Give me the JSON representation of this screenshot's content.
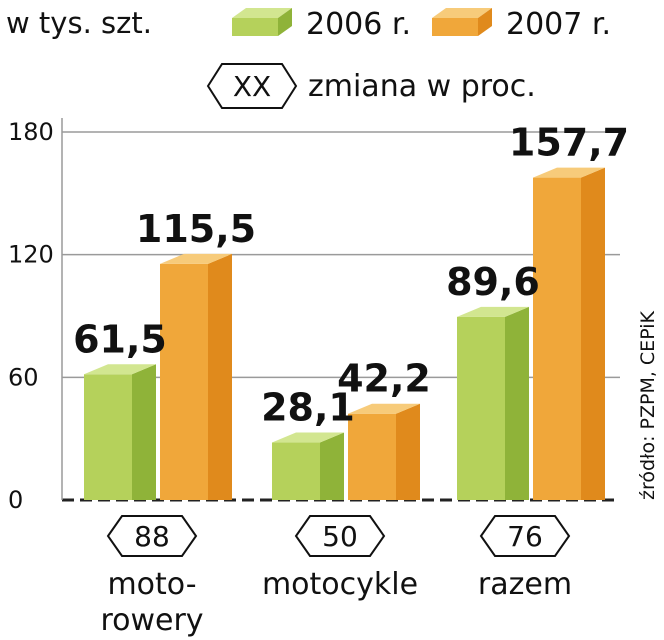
{
  "chart_data": {
    "type": "bar",
    "unit_label": "w tys. szt.",
    "legend_placement": "top",
    "series": [
      {
        "name": "2006 r.",
        "values": [
          61.5,
          28.1,
          89.6
        ],
        "labels": [
          "61,5",
          "28,1",
          "89,6"
        ],
        "color": "#b5d15b"
      },
      {
        "name": "2007 r.",
        "values": [
          115.5,
          42.2,
          157.7
        ],
        "labels": [
          "115,5",
          "42,2",
          "157,7"
        ],
        "color": "#f0a73a"
      }
    ],
    "categories": [
      {
        "lines": [
          "moto-",
          "rowery"
        ],
        "change": "88"
      },
      {
        "lines": [
          "motocykle"
        ],
        "change": "50"
      },
      {
        "lines": [
          "razem"
        ],
        "change": "76"
      }
    ],
    "change_legend": {
      "symbol": "XX",
      "label": "zmiana w proc."
    },
    "yticks": [
      0,
      60,
      120,
      180
    ],
    "ytick_labels": [
      "0",
      "60",
      "120",
      "180"
    ],
    "ylim": [
      0,
      180
    ],
    "grid": true,
    "source": "źródło: PZPM, CEPiK"
  },
  "colors": {
    "green_front": "#b5d15b",
    "green_side": "#8fb339",
    "green_top": "#d2e690",
    "orange_front": "#f0a73a",
    "orange_side": "#e08a1c",
    "orange_top": "#f7cb7a",
    "grid": "#9a9a9a"
  }
}
